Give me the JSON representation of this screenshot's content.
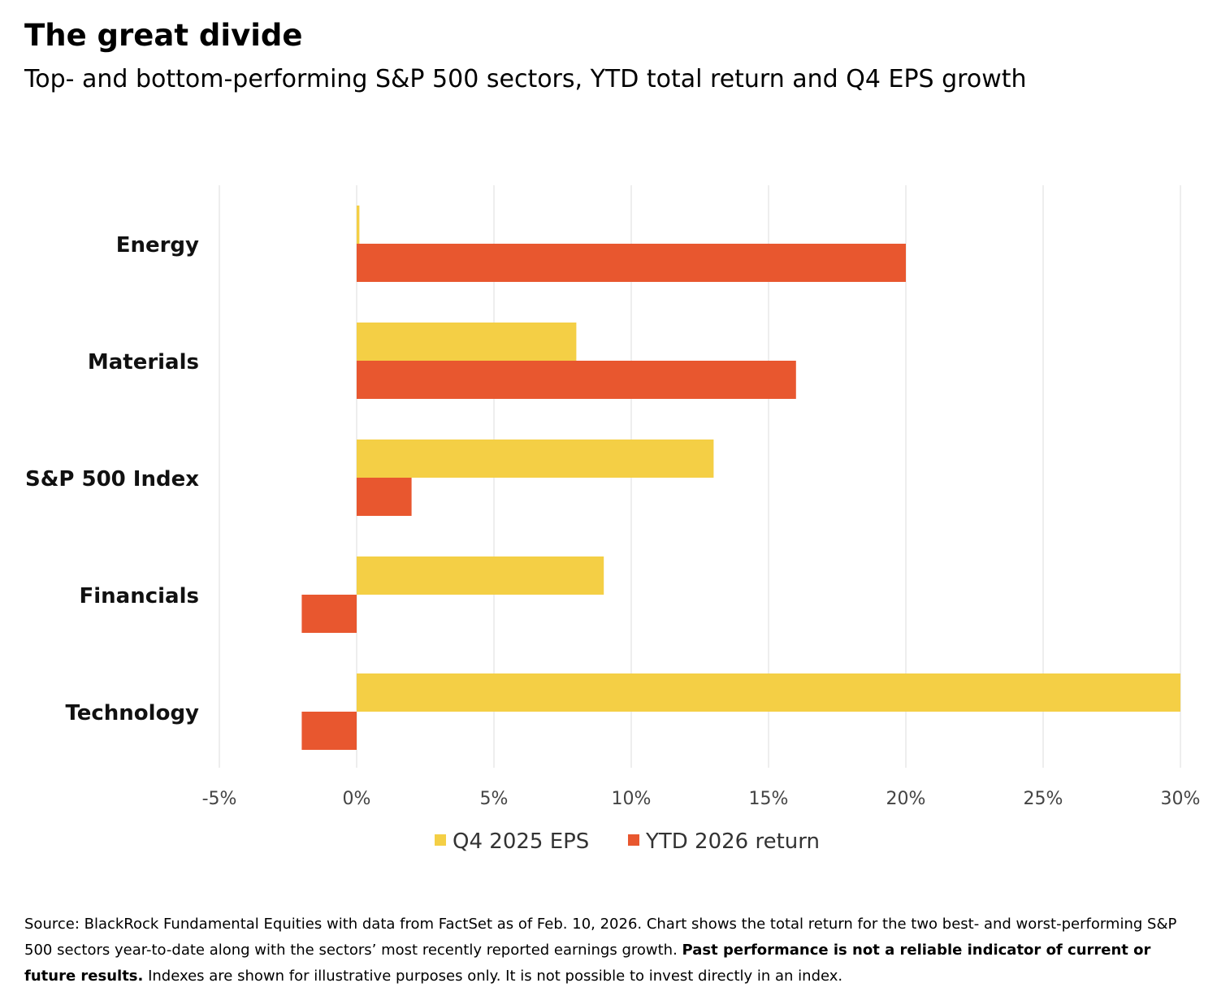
{
  "title": "The great divide",
  "subtitle": "Top- and bottom-performing S&P 500 sectors, YTD total return and Q4 EPS growth",
  "chart_data": {
    "type": "bar",
    "orientation": "horizontal",
    "categories": [
      "Energy",
      "Materials",
      "S&P 500 Index",
      "Financials",
      "Technology"
    ],
    "series": [
      {
        "name": "Q4 2025 EPS",
        "color": "#F4CF45",
        "values": [
          0.1,
          8,
          13,
          9,
          30
        ]
      },
      {
        "name": "YTD 2026 return",
        "color": "#E8572F",
        "values": [
          20,
          16,
          2,
          -2,
          -2
        ]
      }
    ],
    "xlim": [
      -5,
      30
    ],
    "xticks": [
      "-5%",
      "0%",
      "5%",
      "10%",
      "15%",
      "20%",
      "25%",
      "30%"
    ],
    "grid": "vertical",
    "legend": "bottom-center"
  },
  "note": {
    "source": "Source: BlackRock Fundamental Equities with data from FactSet as of Feb. 10, 2026. Chart shows the total return for the two best- and worst-performing S&P 500 sectors year-to-date along with the sectors’ most recently reported earnings growth. ",
    "bold": "Past performance is not a reliable indicator of current or future results.",
    "rest": " Indexes are shown for illustrative purposes only. It is not possible to invest directly in an index."
  }
}
